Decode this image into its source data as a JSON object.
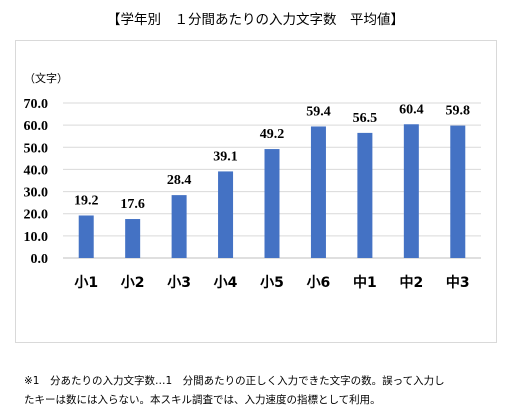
{
  "title": "【学年別　１分間あたりの入力文字数　平均値】",
  "chart_data": {
    "type": "bar",
    "title": "【学年別　１分間あたりの入力文字数　平均値】",
    "ylabel": "（文字）",
    "xlabel": "",
    "categories": [
      "小1",
      "小2",
      "小3",
      "小4",
      "小5",
      "小6",
      "中1",
      "中2",
      "中3"
    ],
    "values": [
      19.2,
      17.6,
      28.4,
      39.1,
      49.2,
      59.4,
      56.5,
      60.4,
      59.8
    ],
    "value_labels": [
      "19.2",
      "17.6",
      "28.4",
      "39.1",
      "49.2",
      "59.4",
      "56.5",
      "60.4",
      "59.8"
    ],
    "ylim": [
      0,
      70
    ],
    "yticks": [
      "0.0",
      "10.0",
      "20.0",
      "30.0",
      "40.0",
      "50.0",
      "60.0",
      "70.0"
    ],
    "grid": true,
    "legend": "none",
    "bar_color": "#4472C4",
    "grid_color": "#d9d9d9"
  },
  "footnote": {
    "line1": "※1　分あたりの入力文字数…1　分間あたりの正しく入力できた文字の数。誤って入力し",
    "line2": "たキーは数には入らない。本スキル調査では、入力速度の指標として利用。"
  }
}
